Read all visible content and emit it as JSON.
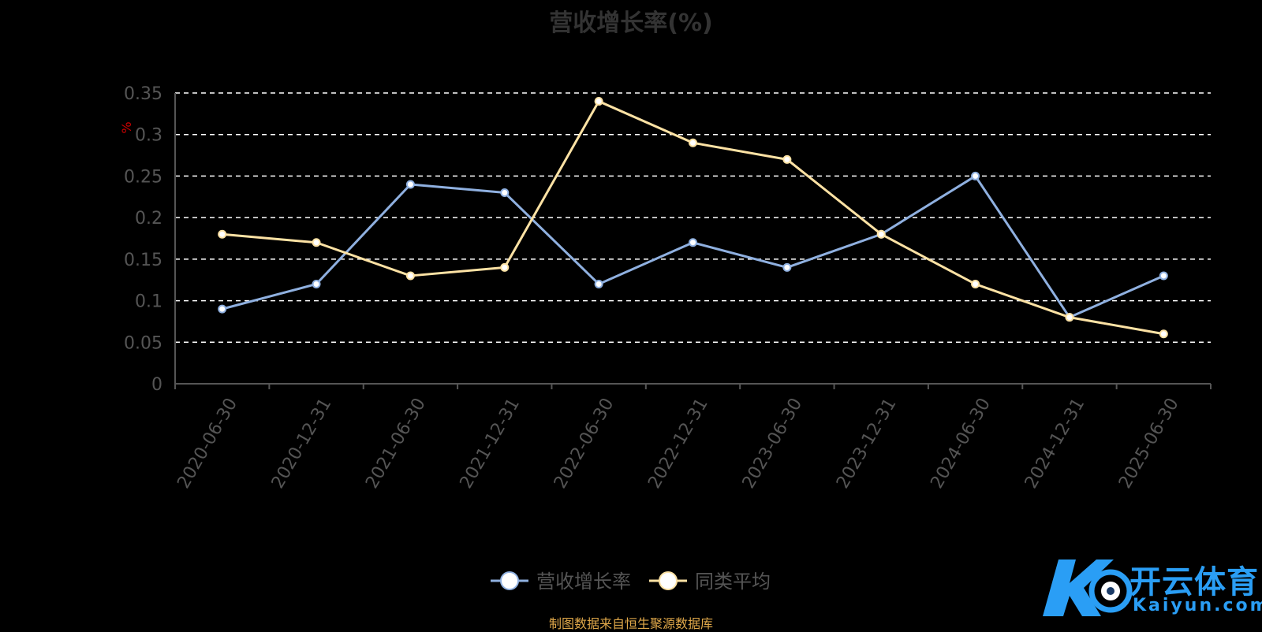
{
  "chart_data": {
    "type": "line",
    "title": "营收增长率(%)",
    "ylabel": "%",
    "categories": [
      "2020-06-30",
      "2020-12-31",
      "2021-06-30",
      "2021-12-31",
      "2022-06-30",
      "2022-12-31",
      "2023-06-30",
      "2023-12-31",
      "2024-06-30",
      "2024-12-31",
      "2025-06-30"
    ],
    "ylim": [
      0,
      0.35
    ],
    "yticks": [
      "0",
      "0.05",
      "0.1",
      "0.15",
      "0.2",
      "0.25",
      "0.3",
      "0.35"
    ],
    "grid": true,
    "legend_position": "bottom",
    "series": [
      {
        "name": "营收增长率",
        "color": "#8fb0e0",
        "values": [
          0.09,
          0.12,
          0.24,
          0.23,
          0.12,
          0.17,
          0.14,
          0.18,
          0.25,
          0.08,
          0.13
        ]
      },
      {
        "name": "同类平均",
        "color": "#fde2a4",
        "values": [
          0.18,
          0.17,
          0.13,
          0.14,
          0.34,
          0.29,
          0.27,
          0.18,
          0.12,
          0.08,
          0.06
        ]
      }
    ]
  },
  "source_note": "制图数据来自恒生聚源数据库",
  "watermark": {
    "cn": "开云体育",
    "en": "Kaiyun.com"
  },
  "colors": {
    "axis": "#555555",
    "grid": "#ffffff",
    "tick_text": "#555555",
    "ylabel": "#cc0000"
  }
}
